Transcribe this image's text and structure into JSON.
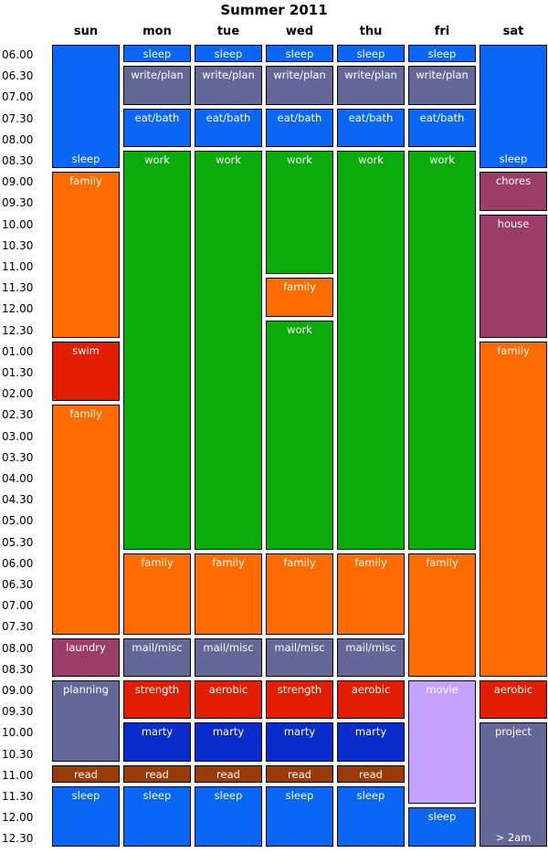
{
  "title": "Summer 2011",
  "days": [
    "sun",
    "mon",
    "tue",
    "wed",
    "thu",
    "fri",
    "sat"
  ],
  "time_labels": [
    "06.00",
    "06.30",
    "07.00",
    "07.30",
    "08.00",
    "08.30",
    "09.00",
    "09.30",
    "10.00",
    "10.30",
    "11.00",
    "11.30",
    "12.00",
    "12.30",
    "01.00",
    "01.30",
    "02.00",
    "02.30",
    "03.00",
    "03.30",
    "04.00",
    "04.30",
    "05.00",
    "05.30",
    "06.00",
    "06.30",
    "07.00",
    "07.30",
    "08.00",
    "08.30",
    "09.00",
    "09.30",
    "10.00",
    "10.30",
    "11.00",
    "11.30",
    "12.00",
    "12.30"
  ],
  "colors": {
    "sleep": "#0a66f5",
    "write": "#636899",
    "work": "#0aac0a",
    "family": "#fe6c00",
    "swim": "#e31e00",
    "chores": "#9b3d66",
    "mail": "#636899",
    "fitness": "#e31e00",
    "marty": "#0a2ccc",
    "read": "#9a3a05",
    "movie": "#c4a3fe",
    "project": "#636899"
  },
  "schedule": {
    "sun": [
      {
        "label": "sleep",
        "start": "06.00",
        "end": "08.30",
        "kind": "sleep",
        "align": "bottom"
      },
      {
        "label": "family",
        "start": "09.00",
        "end": "12.30",
        "kind": "family"
      },
      {
        "label": "swim",
        "start": "01.00",
        "end": "02.00",
        "kind": "swim"
      },
      {
        "label": "family",
        "start": "02.30",
        "end": "07.30",
        "kind": "family"
      },
      {
        "label": "laundry",
        "start": "08.00",
        "end": "08.30",
        "kind": "chores"
      },
      {
        "label": "planning",
        "start": "09.00",
        "end": "10.30",
        "kind": "project"
      },
      {
        "label": "read",
        "start": "11.00",
        "end": "11.00",
        "kind": "read"
      },
      {
        "label": "sleep",
        "start": "11.30",
        "end": "12.30",
        "kind": "sleep"
      }
    ],
    "mon": [
      {
        "label": "sleep",
        "start": "06.00",
        "end": "06.00",
        "kind": "sleep"
      },
      {
        "label": "write/plan",
        "start": "06.30",
        "end": "07.00",
        "kind": "write"
      },
      {
        "label": "eat/bath",
        "start": "07.30",
        "end": "08.00",
        "kind": "sleep"
      },
      {
        "label": "work",
        "start": "08.30",
        "end": "05.30",
        "kind": "work"
      },
      {
        "label": "family",
        "start": "06.00",
        "end": "07.30",
        "kind": "family"
      },
      {
        "label": "mail/misc",
        "start": "08.00",
        "end": "08.30",
        "kind": "mail"
      },
      {
        "label": "strength",
        "start": "09.00",
        "end": "09.30",
        "kind": "fitness"
      },
      {
        "label": "marty",
        "start": "10.00",
        "end": "10.30",
        "kind": "marty"
      },
      {
        "label": "read",
        "start": "11.00",
        "end": "11.00",
        "kind": "read"
      },
      {
        "label": "sleep",
        "start": "11.30",
        "end": "12.30",
        "kind": "sleep"
      }
    ],
    "tue": [
      {
        "label": "sleep",
        "start": "06.00",
        "end": "06.00",
        "kind": "sleep"
      },
      {
        "label": "write/plan",
        "start": "06.30",
        "end": "07.00",
        "kind": "write"
      },
      {
        "label": "eat/bath",
        "start": "07.30",
        "end": "08.00",
        "kind": "sleep"
      },
      {
        "label": "work",
        "start": "08.30",
        "end": "05.30",
        "kind": "work"
      },
      {
        "label": "family",
        "start": "06.00",
        "end": "07.30",
        "kind": "family"
      },
      {
        "label": "mail/misc",
        "start": "08.00",
        "end": "08.30",
        "kind": "mail"
      },
      {
        "label": "aerobic",
        "start": "09.00",
        "end": "09.30",
        "kind": "fitness"
      },
      {
        "label": "marty",
        "start": "10.00",
        "end": "10.30",
        "kind": "marty"
      },
      {
        "label": "read",
        "start": "11.00",
        "end": "11.00",
        "kind": "read"
      },
      {
        "label": "sleep",
        "start": "11.30",
        "end": "12.30",
        "kind": "sleep"
      }
    ],
    "wed": [
      {
        "label": "sleep",
        "start": "06.00",
        "end": "06.00",
        "kind": "sleep"
      },
      {
        "label": "write/plan",
        "start": "06.30",
        "end": "07.00",
        "kind": "write"
      },
      {
        "label": "eat/bath",
        "start": "07.30",
        "end": "08.00",
        "kind": "sleep"
      },
      {
        "label": "work",
        "start": "08.30",
        "end": "11.00",
        "kind": "work"
      },
      {
        "label": "family",
        "start": "11.30",
        "end": "12.00",
        "kind": "family"
      },
      {
        "label": "work",
        "start": "12.30",
        "end": "05.30",
        "kind": "work"
      },
      {
        "label": "family",
        "start": "06.00",
        "end": "07.30",
        "kind": "family"
      },
      {
        "label": "mail/misc",
        "start": "08.00",
        "end": "08.30",
        "kind": "mail"
      },
      {
        "label": "strength",
        "start": "09.00",
        "end": "09.30",
        "kind": "fitness"
      },
      {
        "label": "marty",
        "start": "10.00",
        "end": "10.30",
        "kind": "marty"
      },
      {
        "label": "read",
        "start": "11.00",
        "end": "11.00",
        "kind": "read"
      },
      {
        "label": "sleep",
        "start": "11.30",
        "end": "12.30",
        "kind": "sleep"
      }
    ],
    "thu": [
      {
        "label": "sleep",
        "start": "06.00",
        "end": "06.00",
        "kind": "sleep"
      },
      {
        "label": "write/plan",
        "start": "06.30",
        "end": "07.00",
        "kind": "write"
      },
      {
        "label": "eat/bath",
        "start": "07.30",
        "end": "08.00",
        "kind": "sleep"
      },
      {
        "label": "work",
        "start": "08.30",
        "end": "05.30",
        "kind": "work"
      },
      {
        "label": "family",
        "start": "06.00",
        "end": "07.30",
        "kind": "family"
      },
      {
        "label": "mail/misc",
        "start": "08.00",
        "end": "08.30",
        "kind": "mail"
      },
      {
        "label": "aerobic",
        "start": "09.00",
        "end": "09.30",
        "kind": "fitness"
      },
      {
        "label": "marty",
        "start": "10.00",
        "end": "10.30",
        "kind": "marty"
      },
      {
        "label": "read",
        "start": "11.00",
        "end": "11.00",
        "kind": "read"
      },
      {
        "label": "sleep",
        "start": "11.30",
        "end": "12.30",
        "kind": "sleep"
      }
    ],
    "fri": [
      {
        "label": "sleep",
        "start": "06.00",
        "end": "06.00",
        "kind": "sleep"
      },
      {
        "label": "write/plan",
        "start": "06.30",
        "end": "07.00",
        "kind": "write"
      },
      {
        "label": "eat/bath",
        "start": "07.30",
        "end": "08.00",
        "kind": "sleep"
      },
      {
        "label": "work",
        "start": "08.30",
        "end": "05.30",
        "kind": "work"
      },
      {
        "label": "family",
        "start": "06.00",
        "end": "08.30",
        "kind": "family"
      },
      {
        "label": "movie",
        "start": "09.00",
        "end": "11.30",
        "kind": "movie"
      },
      {
        "label": "sleep",
        "start": "12.00",
        "end": "12.30",
        "kind": "sleep"
      }
    ],
    "sat": [
      {
        "label": "sleep",
        "start": "06.00",
        "end": "08.30",
        "kind": "sleep",
        "align": "bottom"
      },
      {
        "label": "chores",
        "start": "09.00",
        "end": "09.30",
        "kind": "chores"
      },
      {
        "label": "house",
        "start": "10.00",
        "end": "12.30",
        "kind": "chores"
      },
      {
        "label": "family",
        "start": "01.00",
        "end": "08.30",
        "kind": "family"
      },
      {
        "label": "aerobic",
        "start": "09.00",
        "end": "09.30",
        "kind": "fitness"
      },
      {
        "label": "project",
        "start": "10.00",
        "end": "12.30",
        "kind": "project",
        "note": "> 2am"
      }
    ]
  }
}
